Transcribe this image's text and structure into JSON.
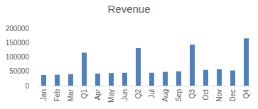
{
  "chart_data": {
    "type": "bar",
    "title": "Revenue",
    "categories": [
      "Jan",
      "Feb",
      "Mar",
      "Q1",
      "Apr",
      "May",
      "Jun",
      "Q2",
      "Jul",
      "Aug",
      "Sep",
      "Q3",
      "Oct",
      "Nov",
      "Dec",
      "Q4"
    ],
    "values": [
      37000,
      38000,
      40000,
      115000,
      42000,
      44000,
      45000,
      131000,
      45000,
      48000,
      50000,
      143000,
      55000,
      57000,
      53000,
      165000
    ],
    "color": "#4f81bd",
    "ylim": [
      0,
      200000
    ],
    "yticks": [
      0,
      50000,
      100000,
      150000,
      200000
    ],
    "grid": false
  }
}
